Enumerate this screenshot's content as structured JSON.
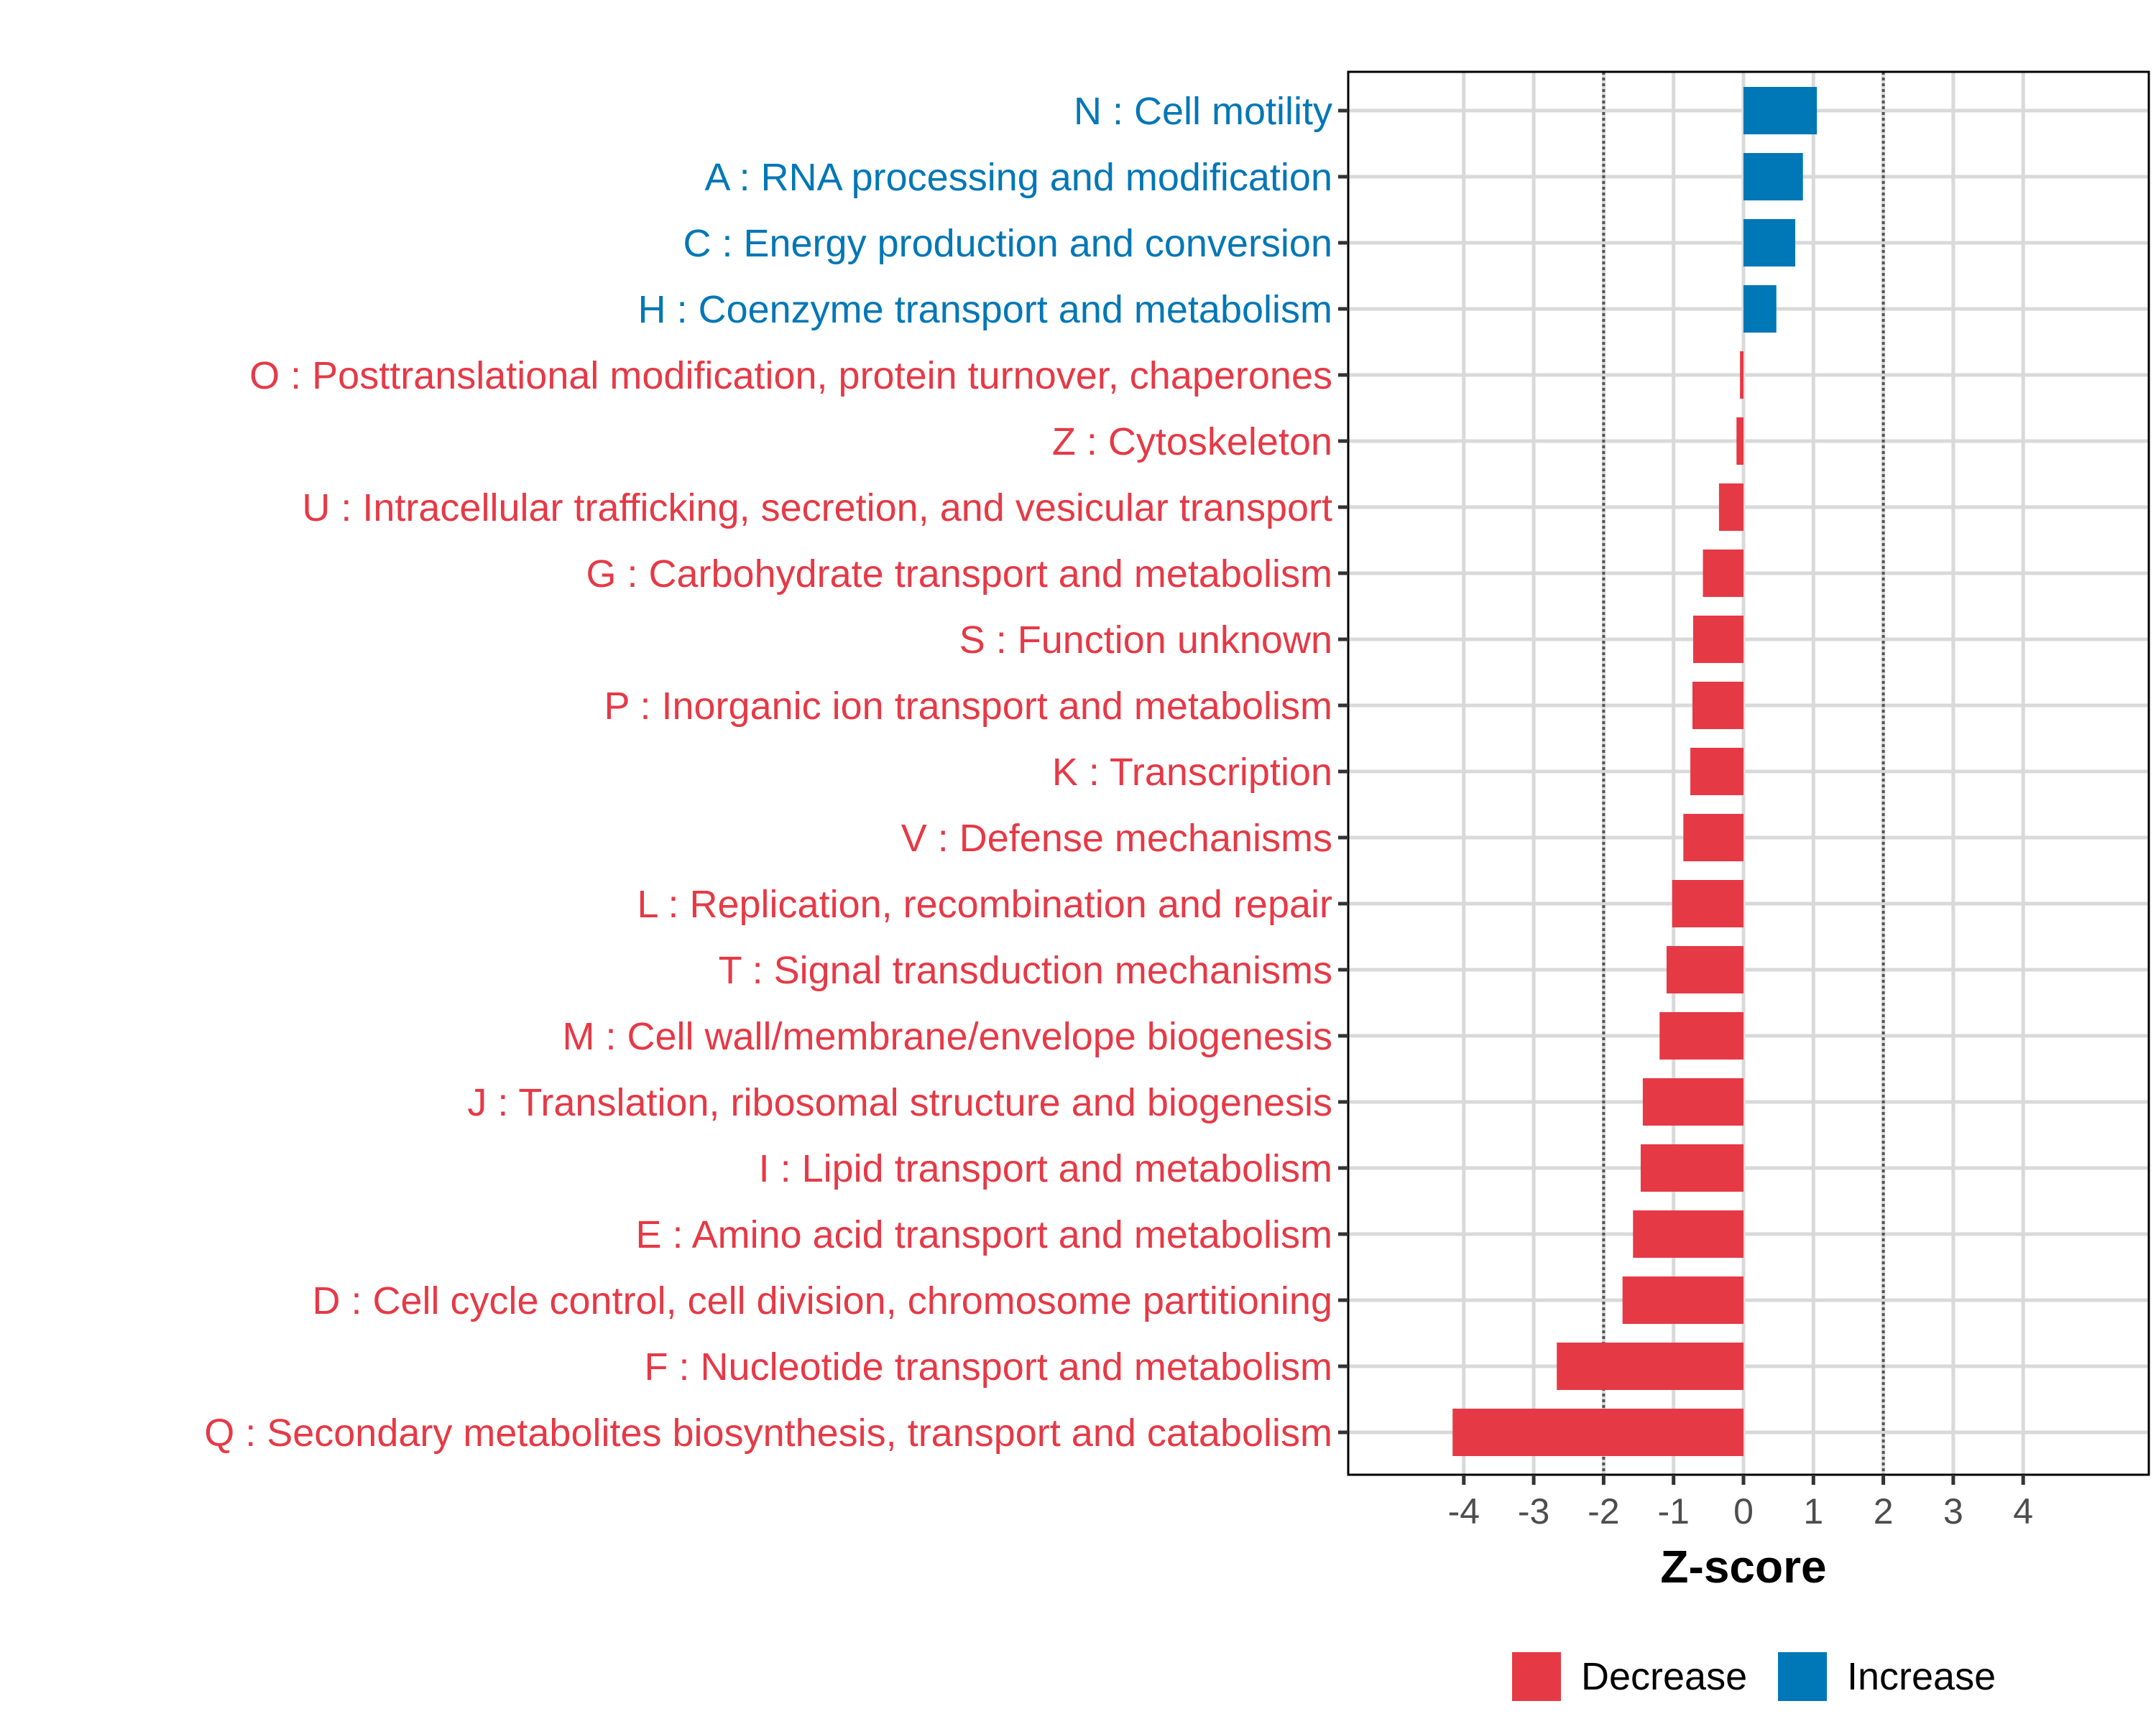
{
  "chart_data": {
    "type": "bar",
    "orientation": "horizontal",
    "title": "",
    "xlabel": "Z-score",
    "ylabel": "",
    "xlim": [
      -5.65,
      5.8
    ],
    "xticks": [
      -4,
      -3,
      -2,
      -1,
      0,
      1,
      2,
      3,
      4
    ],
    "xtick_labels": [
      "-4",
      "-3",
      "-2",
      "-1",
      "0",
      "1",
      "2",
      "3",
      "4"
    ],
    "reference_lines": [
      -2,
      2
    ],
    "grid": true,
    "legend_position": "bottom",
    "legend": [
      {
        "label": "Decrease",
        "color": "#E63946"
      },
      {
        "label": "Increase",
        "color": "#0077B6"
      }
    ],
    "categories": [
      "N : Cell motility",
      "A : RNA processing and modification",
      "C : Energy production and conversion",
      "H : Coenzyme transport and metabolism",
      "O : Posttranslational modification, protein turnover, chaperones",
      "Z : Cytoskeleton",
      "U : Intracellular trafficking, secretion, and vesicular transport",
      "G : Carbohydrate transport and metabolism",
      "S : Function unknown",
      "P : Inorganic ion transport and metabolism",
      "K : Transcription",
      "V : Defense mechanisms",
      "L : Replication, recombination and repair",
      "T : Signal transduction mechanisms",
      "M : Cell wall/membrane/envelope biogenesis",
      "J : Translation, ribosomal structure and biogenesis",
      "I : Lipid transport and metabolism",
      "E : Amino acid transport and metabolism",
      "D : Cell cycle control, cell division, chromosome partitioning",
      "F : Nucleotide transport and metabolism",
      "Q : Secondary metabolites biosynthesis, transport and catabolism"
    ],
    "values": [
      1.05,
      0.85,
      0.74,
      0.47,
      -0.05,
      -0.1,
      -0.35,
      -0.58,
      -0.72,
      -0.73,
      -0.76,
      -0.86,
      -1.02,
      -1.1,
      -1.2,
      -1.44,
      -1.47,
      -1.58,
      -1.73,
      -2.67,
      -4.16
    ],
    "groups": [
      "Increase",
      "Increase",
      "Increase",
      "Increase",
      "Decrease",
      "Decrease",
      "Decrease",
      "Decrease",
      "Decrease",
      "Decrease",
      "Decrease",
      "Decrease",
      "Decrease",
      "Decrease",
      "Decrease",
      "Decrease",
      "Decrease",
      "Decrease",
      "Decrease",
      "Decrease",
      "Decrease"
    ]
  },
  "colors": {
    "decrease": "#E63946",
    "increase": "#0077B6",
    "grid": "#d9d9d9",
    "panel_border": "#000000",
    "reference_line": "#555555",
    "tick_text": "#4d4d4d"
  }
}
